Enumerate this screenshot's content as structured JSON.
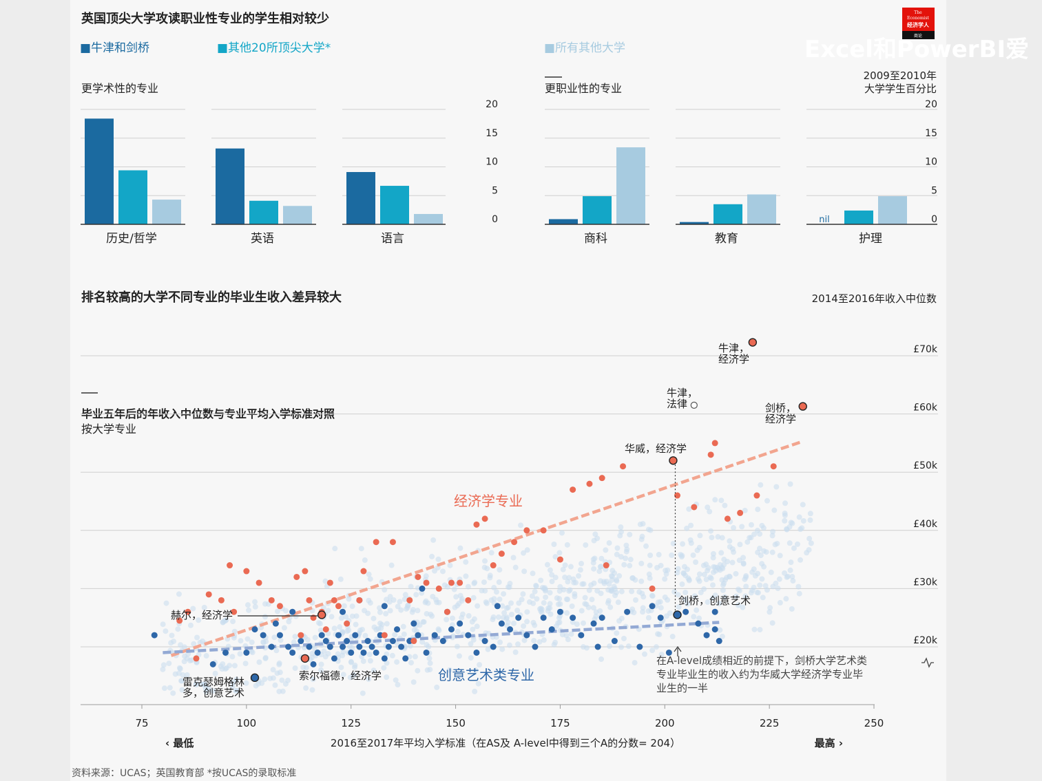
{
  "page": {
    "title": "英国顶尖大学攻读职业性专业的学生相对较少",
    "source": "资料来源：UCAS；英国教育部    *按UCAS的录取标准",
    "watermark": "Excel和PowerBI爱",
    "logo": {
      "line1": "The",
      "line2": "Economist",
      "line3": "经济学人",
      "line4": "商论"
    }
  },
  "legend": [
    {
      "label": "■牛津和剑桥",
      "color": "#1b6aa0"
    },
    {
      "label": "■其他20所顶尖大学*",
      "color": "#13a6c7"
    },
    {
      "label": "■所有其他大学",
      "color": "#a7cbe0"
    }
  ],
  "colors": {
    "oxbridge": "#1b6aa0",
    "top20": "#13a6c7",
    "others": "#a7cbe0",
    "econ": "#ea6a53",
    "arts": "#2e67a8",
    "cloud": "#c9ddee",
    "grid": "#cfcfcf"
  },
  "chart_data": [
    {
      "type": "bar",
      "group_title": "更学术性的专业",
      "axis_unit_label": "",
      "yticks": [
        0,
        5,
        10,
        15,
        20
      ],
      "ylim": [
        0,
        20
      ],
      "series_names": [
        "牛津和剑桥",
        "其他20所顶尖大学*",
        "所有其他大学"
      ],
      "categories": [
        {
          "name": "历史/哲学",
          "values": [
            18.4,
            9.4,
            4.3
          ]
        },
        {
          "name": "英语",
          "values": [
            13.2,
            4.1,
            3.2
          ]
        },
        {
          "name": "语言",
          "values": [
            9.1,
            6.7,
            1.8
          ]
        }
      ]
    },
    {
      "type": "bar",
      "group_title": "更职业性的专业",
      "axis_unit_label": "2009至2010年\n大学学生百分比",
      "yticks": [
        0,
        5,
        10,
        15,
        20
      ],
      "ylim": [
        0,
        20
      ],
      "series_names": [
        "牛津和剑桥",
        "其他20所顶尖大学*",
        "所有其他大学"
      ],
      "nil_label": "nil",
      "categories": [
        {
          "name": "商科",
          "values": [
            0.9,
            4.9,
            13.4
          ]
        },
        {
          "name": "教育",
          "values": [
            0.4,
            3.5,
            5.2
          ]
        },
        {
          "name": "护理",
          "values": [
            0,
            2.4,
            4.9
          ]
        }
      ]
    },
    {
      "type": "scatter",
      "title": "排名较高的大学不同专业的毕业生收入差异较大",
      "subtitle_line1": "毕业五年后的年收入中位数与专业平均入学标准对照",
      "subtitle_line2": "按大学专业",
      "ylabel": "2014至2016年收入中位数",
      "xlabel": "2016至2017年平均入学标准（在AS及 A-level中得到三个A的分数= 204）",
      "x_low_label": "‹ 最低",
      "x_high_label": "最高 ›",
      "xlim": [
        70,
        255
      ],
      "ylim": [
        10,
        75
      ],
      "xticks": [
        75,
        100,
        125,
        150,
        175,
        200,
        225,
        250
      ],
      "yticks": [
        {
          "value": 20,
          "label": "£20k"
        },
        {
          "value": 30,
          "label": "£30k"
        },
        {
          "value": 40,
          "label": "£40k"
        },
        {
          "value": 50,
          "label": "£50k"
        },
        {
          "value": 60,
          "label": "£60k"
        },
        {
          "value": 70,
          "label": "£70k"
        }
      ],
      "series_labels": {
        "economics": "经济学专业",
        "arts": "创意艺术类专业"
      },
      "economics_trend": [
        [
          82,
          18.5
        ],
        [
          233,
          55.3
        ]
      ],
      "arts_trend": [
        [
          80,
          19
        ],
        [
          213,
          24.2
        ]
      ],
      "economics": [
        [
          84,
          24.5
        ],
        [
          88,
          18
        ],
        [
          91,
          29
        ],
        [
          94,
          28
        ],
        [
          96,
          34
        ],
        [
          100,
          33
        ],
        [
          103,
          31
        ],
        [
          106,
          28
        ],
        [
          108,
          27
        ],
        [
          112,
          32
        ],
        [
          114,
          33
        ],
        [
          115,
          28
        ],
        [
          116,
          25
        ],
        [
          118,
          26
        ],
        [
          120,
          31
        ],
        [
          122,
          27
        ],
        [
          124,
          24
        ],
        [
          127,
          28
        ],
        [
          128,
          33
        ],
        [
          131,
          38
        ],
        [
          135,
          38
        ],
        [
          139,
          28
        ],
        [
          141,
          32
        ],
        [
          143,
          31
        ],
        [
          146,
          30
        ],
        [
          148,
          26
        ],
        [
          149,
          31
        ],
        [
          151,
          31
        ],
        [
          153,
          28
        ],
        [
          155,
          41
        ],
        [
          157,
          42
        ],
        [
          159,
          34
        ],
        [
          161,
          36
        ],
        [
          164,
          38
        ],
        [
          167,
          40
        ],
        [
          171,
          40
        ],
        [
          175,
          35
        ],
        [
          178,
          47
        ],
        [
          182,
          48
        ],
        [
          185,
          49
        ],
        [
          186,
          34
        ],
        [
          190,
          51
        ],
        [
          197,
          30
        ],
        [
          203,
          46
        ],
        [
          207,
          44
        ],
        [
          211,
          53
        ],
        [
          212,
          55
        ],
        [
          226,
          51
        ],
        [
          222,
          46
        ],
        [
          215,
          42
        ],
        [
          218,
          43
        ],
        [
          140,
          21
        ],
        [
          133,
          22
        ],
        [
          119,
          23
        ],
        [
          113,
          22
        ],
        [
          121,
          28
        ],
        [
          86,
          26
        ],
        [
          97,
          26
        ]
      ],
      "arts": [
        [
          78,
          22
        ],
        [
          92,
          17
        ],
        [
          95,
          19
        ],
        [
          100,
          19
        ],
        [
          102,
          23
        ],
        [
          104,
          22
        ],
        [
          106,
          20
        ],
        [
          108,
          22
        ],
        [
          110,
          20
        ],
        [
          111,
          19
        ],
        [
          113,
          21
        ],
        [
          114,
          18
        ],
        [
          115,
          20
        ],
        [
          116,
          17
        ],
        [
          117,
          19
        ],
        [
          118,
          22
        ],
        [
          119,
          21
        ],
        [
          120,
          20
        ],
        [
          121,
          18
        ],
        [
          122,
          22
        ],
        [
          123,
          20
        ],
        [
          124,
          21
        ],
        [
          125,
          19
        ],
        [
          126,
          22
        ],
        [
          127,
          20
        ],
        [
          128,
          19
        ],
        [
          129,
          21
        ],
        [
          130,
          20
        ],
        [
          131,
          19
        ],
        [
          132,
          22
        ],
        [
          133,
          18
        ],
        [
          134,
          20
        ],
        [
          135,
          21
        ],
        [
          136,
          23
        ],
        [
          137,
          20
        ],
        [
          138,
          18
        ],
        [
          139,
          21
        ],
        [
          140,
          24
        ],
        [
          141,
          22
        ],
        [
          143,
          19
        ],
        [
          145,
          22
        ],
        [
          147,
          21
        ],
        [
          149,
          23
        ],
        [
          151,
          24
        ],
        [
          153,
          22
        ],
        [
          155,
          19
        ],
        [
          157,
          21
        ],
        [
          159,
          20
        ],
        [
          161,
          24
        ],
        [
          163,
          23
        ],
        [
          165,
          25
        ],
        [
          167,
          22
        ],
        [
          169,
          20
        ],
        [
          171,
          25
        ],
        [
          173,
          23
        ],
        [
          175,
          26
        ],
        [
          178,
          25
        ],
        [
          180,
          22
        ],
        [
          183,
          24
        ],
        [
          185,
          25
        ],
        [
          188,
          21
        ],
        [
          191,
          26
        ],
        [
          194,
          20
        ],
        [
          197,
          27
        ],
        [
          199,
          25
        ],
        [
          201,
          19
        ],
        [
          205,
          26
        ],
        [
          208,
          24
        ],
        [
          210,
          22
        ],
        [
          212,
          23
        ],
        [
          213,
          21
        ],
        [
          127,
          28
        ],
        [
          133,
          27
        ],
        [
          148,
          26
        ],
        [
          142,
          30
        ],
        [
          111,
          26
        ],
        [
          107,
          24
        ],
        [
          123,
          26
        ],
        [
          184,
          20
        ],
        [
          212,
          26
        ],
        [
          160,
          27
        ]
      ],
      "annotations": [
        {
          "label": "牛津，\n经济学",
          "x": 221,
          "y": 72.3,
          "kind": "econ"
        },
        {
          "label": "剑桥，\n经济学",
          "x": 233,
          "y": 61.3,
          "kind": "econ"
        },
        {
          "label": "牛津，\n法律",
          "x": 207,
          "y": 61.5,
          "kind": "hollow"
        },
        {
          "label": "华威，经济学",
          "x": 202,
          "y": 52,
          "kind": "econ"
        },
        {
          "label": "剑桥，创意艺术",
          "x": 203,
          "y": 25.5,
          "kind": "arts"
        },
        {
          "label": "赫尔，经济学",
          "x": 118,
          "y": 25.5,
          "kind": "econ"
        },
        {
          "label": "索尔福德，经济学",
          "x": 114,
          "y": 18,
          "kind": "econ"
        },
        {
          "label": "雷克瑟姆格林\n多，创意艺术",
          "x": 102,
          "y": 14.7,
          "kind": "arts"
        }
      ],
      "note": "在A-level成绩相近的前提下，剑桥大学艺术类\n专业毕业生的收入约为华威大学经济学专业毕\n业生的一半"
    }
  ]
}
